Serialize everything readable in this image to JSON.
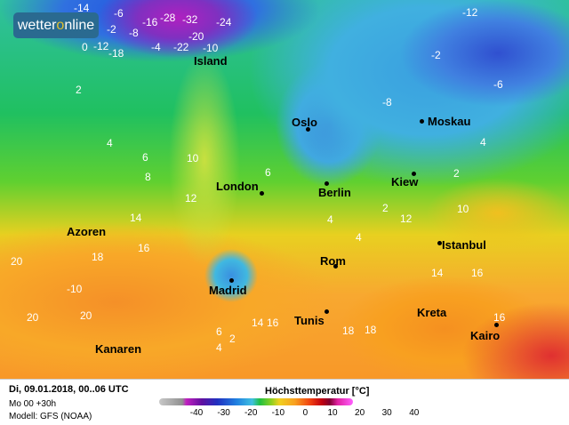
{
  "logo": {
    "text_a": "wetter",
    "text_b": "o",
    "text_c": "nline"
  },
  "cities": [
    {
      "name": "Island"
    },
    {
      "name": "Oslo"
    },
    {
      "name": "Moskau"
    },
    {
      "name": "London"
    },
    {
      "name": "Berlin"
    },
    {
      "name": "Kiew"
    },
    {
      "name": "Azoren"
    },
    {
      "name": "Istanbul"
    },
    {
      "name": "Rom"
    },
    {
      "name": "Madrid"
    },
    {
      "name": "Kreta"
    },
    {
      "name": "Tunis"
    },
    {
      "name": "Kairo"
    },
    {
      "name": "Kanaren"
    }
  ],
  "temps": [
    "-14",
    "-6",
    "-16",
    "-28",
    "-2",
    "-24",
    "-20",
    "-12",
    "-22",
    "-10",
    "-18",
    "-32",
    "-8",
    "0",
    "-4",
    "2",
    "4",
    "6",
    "8",
    "10",
    "12",
    "14",
    "16",
    "18",
    "20",
    "-10",
    "-12",
    "-6",
    "-8",
    "-2",
    "2",
    "4",
    "14",
    "16",
    "20",
    "18",
    "4",
    "2",
    "6",
    "4",
    "10",
    "12",
    "14",
    "16",
    "18",
    "20",
    "16",
    "4",
    "6",
    "2"
  ],
  "footer": {
    "date": "Di, 09.01.2018, 00..06 UTC",
    "run": "Mo 00 +30h",
    "model": "Modell: GFS (NOAA)",
    "legend_title": "Höchsttemperatur [°C]",
    "scale_ticks": [
      "-40",
      "-30",
      "-20",
      "-10",
      "0",
      "10",
      "20",
      "30",
      "40"
    ]
  },
  "colors": {
    "logo_bg": "#2a6a90",
    "logo_accent": "#e0c030"
  }
}
